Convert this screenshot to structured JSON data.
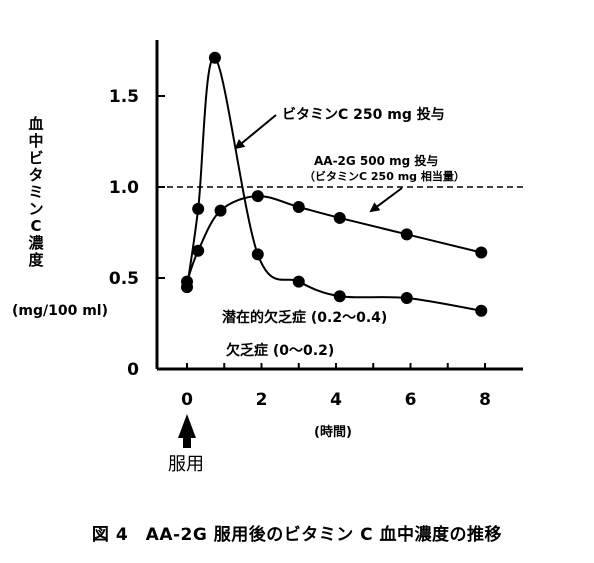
{
  "chart_data": {
    "type": "line",
    "ylabel": "血中ビタミンC濃度",
    "yunit": "(mg/100 ml)",
    "xlabel": "(時間)",
    "xlim": [
      -0.4,
      9
    ],
    "ylim": [
      0,
      1.8
    ],
    "xticks": [
      0,
      2,
      4,
      6,
      8
    ],
    "yticks": [
      {
        "value": 0,
        "label": "0"
      },
      {
        "value": 0.5,
        "label": "0.5"
      },
      {
        "value": 1.0,
        "label": "1.0"
      },
      {
        "value": 1.5,
        "label": "1.5"
      }
    ],
    "reference_line": {
      "y": 1.0,
      "style": "dashed"
    },
    "series": [
      {
        "name": "ビタミンC 250 mg 投与",
        "x": [
          0,
          0.3,
          0.75,
          1.9,
          3.0,
          4.1,
          5.9,
          7.9
        ],
        "y": [
          0.45,
          0.88,
          1.71,
          0.63,
          0.48,
          0.4,
          0.39,
          0.32
        ]
      },
      {
        "name": "AA-2G 500 mg 投与",
        "name_sub": "（ビタミンC 250 mg 相当量）",
        "x": [
          0,
          0.3,
          0.9,
          1.9,
          3.0,
          4.1,
          5.9,
          7.9
        ],
        "y": [
          0.48,
          0.65,
          0.87,
          0.95,
          0.89,
          0.83,
          0.74,
          0.64
        ]
      }
    ],
    "annotations": [
      {
        "text": "潜在的欠乏症 (0.2～0.4)"
      },
      {
        "text": "欠乏症 (0～0.2)"
      }
    ],
    "dose_marker": {
      "label": "服用",
      "x": 0
    }
  },
  "caption": "図 4　AA-2G 服用後のビタミン C 血中濃度の推移"
}
